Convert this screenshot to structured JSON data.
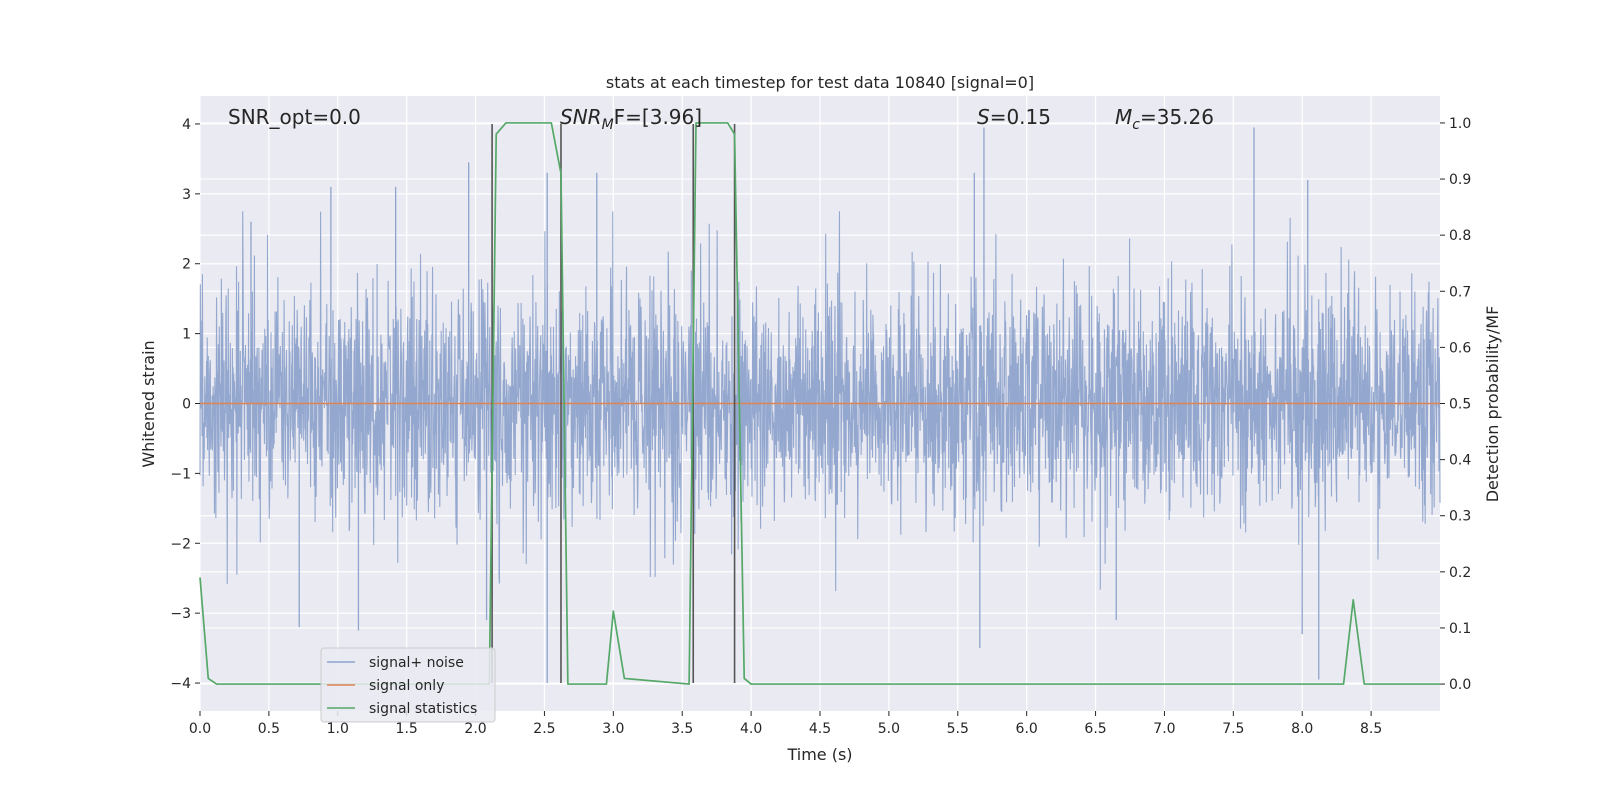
{
  "chart_data": {
    "type": "line",
    "title": "stats at each timestep for test data 10840 [signal=0]",
    "xlabel": "Time (s)",
    "ylabel": "Whitened strain",
    "y2label": "Detection probability/MF",
    "xlim": [
      0,
      9
    ],
    "ylim": [
      -4.4,
      4.4
    ],
    "y2lim": [
      -0.048,
      1.048
    ],
    "xticks": [
      0.0,
      0.5,
      1.0,
      1.5,
      2.0,
      2.5,
      3.0,
      3.5,
      4.0,
      4.5,
      5.0,
      5.5,
      6.0,
      6.5,
      7.0,
      7.5,
      8.0,
      8.5
    ],
    "xtick_labels": [
      "0.0",
      "0.5",
      "1.0",
      "1.5",
      "2.0",
      "2.5",
      "3.0",
      "3.5",
      "4.0",
      "4.5",
      "5.0",
      "5.5",
      "6.0",
      "6.5",
      "7.0",
      "7.5",
      "8.0",
      "8.5"
    ],
    "yticks": [
      4,
      3,
      2,
      1,
      0,
      -1,
      -2,
      -3,
      -4
    ],
    "ytick_labels": [
      "4",
      "3",
      "2",
      "1",
      "0",
      "−1",
      "−2",
      "−3",
      "−4"
    ],
    "y2ticks": [
      1.0,
      0.9,
      0.8,
      0.7,
      0.6,
      0.5,
      0.4,
      0.3,
      0.2,
      0.1,
      0.0
    ],
    "y2tick_labels": [
      "1.0",
      "0.9",
      "0.8",
      "0.7",
      "0.6",
      "0.5",
      "0.4",
      "0.3",
      "0.2",
      "0.1",
      "0.0"
    ],
    "grid": true,
    "legend_position": "lower-left",
    "annotations": {
      "snr_opt": "SNR_opt=0.0",
      "snr_mf_main": "SNR",
      "snr_mf_sub": "M",
      "snr_mf_rest": "F=[3.96]",
      "s_main": "S",
      "s_rest": "=0.15",
      "mc_main": "M",
      "mc_sub": "c",
      "mc_rest": "=35.26"
    },
    "series": [
      {
        "name": "signal+ noise",
        "color": "#8fa4cc",
        "axis": "left",
        "description_kind": "noise",
        "amplitude_sigma": 0.8,
        "spikes": [
          {
            "x": 0.37,
            "y": 2.6
          },
          {
            "x": 0.72,
            "y": -3.2
          },
          {
            "x": 0.95,
            "y": 3.1
          },
          {
            "x": 1.15,
            "y": -3.25
          },
          {
            "x": 1.42,
            "y": 3.1
          },
          {
            "x": 1.95,
            "y": 3.45
          },
          {
            "x": 2.08,
            "y": -3.1
          },
          {
            "x": 2.52,
            "y": 3.3
          },
          {
            "x": 2.52,
            "y": -4.0
          },
          {
            "x": 2.88,
            "y": 3.3
          },
          {
            "x": 5.62,
            "y": 3.3
          },
          {
            "x": 5.69,
            "y": 3.95
          },
          {
            "x": 5.66,
            "y": -3.5
          },
          {
            "x": 6.65,
            "y": -3.1
          },
          {
            "x": 7.65,
            "y": 3.95
          },
          {
            "x": 8.0,
            "y": -3.3
          },
          {
            "x": 8.04,
            "y": 3.2
          },
          {
            "x": 8.12,
            "y": -3.95
          }
        ]
      },
      {
        "name": "signal only",
        "color": "#dd8452",
        "axis": "left",
        "x": [
          0,
          9
        ],
        "y": [
          0,
          0
        ]
      },
      {
        "name": "signal statistics",
        "color": "#55a868",
        "axis": "right",
        "x": [
          0.0,
          0.06,
          0.12,
          2.1,
          2.15,
          2.22,
          2.55,
          2.62,
          2.67,
          2.95,
          3.0,
          3.08,
          3.55,
          3.6,
          3.67,
          3.83,
          3.88,
          3.95,
          4.0,
          8.3,
          8.37,
          8.45,
          9.0
        ],
        "y": [
          0.19,
          0.01,
          0.0,
          0.0,
          0.98,
          1.0,
          1.0,
          0.91,
          0.0,
          0.0,
          0.13,
          0.01,
          0.0,
          1.0,
          1.0,
          1.0,
          0.98,
          0.01,
          0.0,
          0.0,
          0.15,
          0.0,
          0.0
        ]
      }
    ],
    "markers": {
      "color": "#555555",
      "x": [
        2.12,
        2.62,
        3.58,
        3.88
      ],
      "y_range": [
        -4,
        4
      ]
    }
  }
}
